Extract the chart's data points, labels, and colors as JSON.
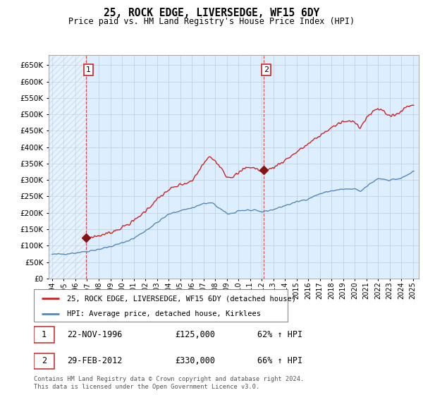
{
  "title": "25, ROCK EDGE, LIVERSEDGE, WF15 6DY",
  "subtitle": "Price paid vs. HM Land Registry's House Price Index (HPI)",
  "legend_line1": "25, ROCK EDGE, LIVERSEDGE, WF15 6DY (detached house)",
  "legend_line2": "HPI: Average price, detached house, Kirklees",
  "footnote": "Contains HM Land Registry data © Crown copyright and database right 2024.\nThis data is licensed under the Open Government Licence v3.0.",
  "sale1_date": "22-NOV-1996",
  "sale1_price": "£125,000",
  "sale1_hpi": "62% ↑ HPI",
  "sale2_date": "29-FEB-2012",
  "sale2_price": "£330,000",
  "sale2_hpi": "66% ↑ HPI",
  "hpi_color": "#5588bb",
  "price_color": "#cc2222",
  "marker_color": "#881111",
  "bg_color": "#ddeeff",
  "ylim": [
    0,
    680000
  ],
  "xlim_left": 1993.7,
  "xlim_right": 2025.5,
  "yticks": [
    0,
    50000,
    100000,
    150000,
    200000,
    250000,
    300000,
    350000,
    400000,
    450000,
    500000,
    550000,
    600000,
    650000
  ],
  "sale1_x": 1996.9,
  "sale1_y": 125000,
  "sale2_x": 2012.16,
  "sale2_y": 330000
}
